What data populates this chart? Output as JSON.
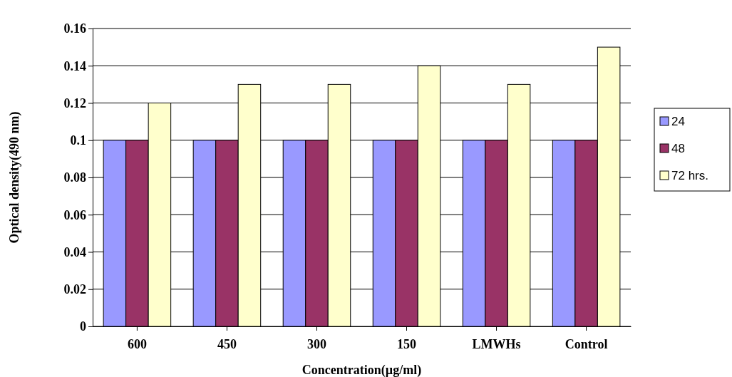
{
  "chart_data": {
    "type": "bar",
    "xlabel": "Concentration(µg/ml)",
    "ylabel": "Optical density(490 nm)",
    "categories": [
      "600",
      "450",
      "300",
      "150",
      "LMWHs",
      "Control"
    ],
    "series": [
      {
        "name": "24",
        "color": "#9999ff",
        "values": [
          0.1,
          0.1,
          0.1,
          0.1,
          0.1,
          0.1
        ]
      },
      {
        "name": "48",
        "color": "#993366",
        "values": [
          0.1,
          0.1,
          0.1,
          0.1,
          0.1,
          0.1
        ]
      },
      {
        "name": "72 hrs.",
        "color": "#ffffcc",
        "values": [
          0.12,
          0.13,
          0.13,
          0.14,
          0.13,
          0.15
        ]
      }
    ],
    "ylim": [
      0,
      0.16
    ],
    "yticks": [
      0,
      0.02,
      0.04,
      0.06,
      0.08,
      {
        "value": 0.1,
        "label": "0.1"
      },
      0.12,
      0.14,
      0.16
    ],
    "grid": "y",
    "legend": "right"
  }
}
